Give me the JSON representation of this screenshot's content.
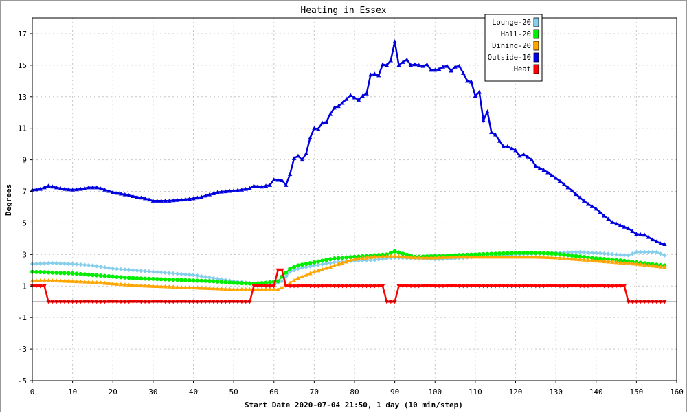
{
  "chart_data": {
    "type": "line",
    "title": "Heating in Essex",
    "xlabel": "Start Date 2020-07-04 21:50, 1 day (10 min/step)",
    "ylabel": "Degrees",
    "xlim": [
      0,
      160
    ],
    "ylim": [
      -5,
      18
    ],
    "x_ticks": [
      0,
      10,
      20,
      30,
      40,
      50,
      60,
      70,
      80,
      90,
      100,
      110,
      120,
      130,
      140,
      150,
      160
    ],
    "y_ticks": [
      -5,
      -3,
      -1,
      1,
      3,
      5,
      7,
      9,
      11,
      13,
      15,
      17
    ],
    "grid": true,
    "zero_line": true,
    "legend_position": "top-right",
    "series": [
      {
        "name": "Lounge-20",
        "color": "#87ceeb",
        "marker": "diamond",
        "points": [
          [
            0,
            2.4
          ],
          [
            5,
            2.45
          ],
          [
            10,
            2.4
          ],
          [
            15,
            2.3
          ],
          [
            20,
            2.1
          ],
          [
            25,
            2.0
          ],
          [
            30,
            1.9
          ],
          [
            35,
            1.8
          ],
          [
            40,
            1.7
          ],
          [
            45,
            1.5
          ],
          [
            50,
            1.3
          ],
          [
            55,
            1.15
          ],
          [
            60,
            1.1
          ],
          [
            62,
            1.3
          ],
          [
            64,
            1.9
          ],
          [
            66,
            2.1
          ],
          [
            70,
            2.3
          ],
          [
            75,
            2.5
          ],
          [
            80,
            2.6
          ],
          [
            85,
            2.65
          ],
          [
            88,
            2.75
          ],
          [
            90,
            2.8
          ],
          [
            95,
            2.75
          ],
          [
            100,
            2.7
          ],
          [
            105,
            2.75
          ],
          [
            110,
            2.85
          ],
          [
            115,
            2.9
          ],
          [
            120,
            3.0
          ],
          [
            125,
            3.05
          ],
          [
            130,
            3.1
          ],
          [
            135,
            3.15
          ],
          [
            140,
            3.1
          ],
          [
            145,
            3.0
          ],
          [
            148,
            2.95
          ],
          [
            150,
            3.15
          ],
          [
            155,
            3.15
          ],
          [
            157,
            2.95
          ]
        ]
      },
      {
        "name": "Hall-20",
        "color": "#00ee00",
        "marker": "circle",
        "points": [
          [
            0,
            1.9
          ],
          [
            5,
            1.85
          ],
          [
            10,
            1.8
          ],
          [
            15,
            1.7
          ],
          [
            20,
            1.6
          ],
          [
            25,
            1.5
          ],
          [
            30,
            1.45
          ],
          [
            35,
            1.4
          ],
          [
            40,
            1.35
          ],
          [
            45,
            1.3
          ],
          [
            50,
            1.2
          ],
          [
            55,
            1.15
          ],
          [
            58,
            1.2
          ],
          [
            61,
            1.3
          ],
          [
            62,
            1.6
          ],
          [
            64,
            2.1
          ],
          [
            66,
            2.3
          ],
          [
            70,
            2.5
          ],
          [
            75,
            2.75
          ],
          [
            80,
            2.85
          ],
          [
            85,
            2.95
          ],
          [
            88,
            3.0
          ],
          [
            90,
            3.2
          ],
          [
            92,
            3.05
          ],
          [
            95,
            2.85
          ],
          [
            100,
            2.9
          ],
          [
            105,
            2.95
          ],
          [
            110,
            3.0
          ],
          [
            115,
            3.05
          ],
          [
            120,
            3.1
          ],
          [
            125,
            3.1
          ],
          [
            130,
            3.05
          ],
          [
            135,
            2.9
          ],
          [
            140,
            2.75
          ],
          [
            145,
            2.65
          ],
          [
            150,
            2.5
          ],
          [
            155,
            2.35
          ],
          [
            157,
            2.3
          ]
        ]
      },
      {
        "name": "Dining-20",
        "color": "#ffa500",
        "marker": "triangle-up",
        "points": [
          [
            0,
            1.35
          ],
          [
            5,
            1.35
          ],
          [
            10,
            1.3
          ],
          [
            15,
            1.25
          ],
          [
            20,
            1.15
          ],
          [
            25,
            1.05
          ],
          [
            30,
            1.0
          ],
          [
            35,
            0.95
          ],
          [
            40,
            0.9
          ],
          [
            45,
            0.85
          ],
          [
            50,
            0.8
          ],
          [
            55,
            0.8
          ],
          [
            61,
            0.8
          ],
          [
            62,
            0.9
          ],
          [
            64,
            1.2
          ],
          [
            66,
            1.5
          ],
          [
            70,
            1.9
          ],
          [
            75,
            2.3
          ],
          [
            80,
            2.7
          ],
          [
            85,
            2.85
          ],
          [
            90,
            2.9
          ],
          [
            95,
            2.8
          ],
          [
            100,
            2.8
          ],
          [
            105,
            2.85
          ],
          [
            110,
            2.85
          ],
          [
            115,
            2.85
          ],
          [
            120,
            2.85
          ],
          [
            125,
            2.85
          ],
          [
            130,
            2.8
          ],
          [
            135,
            2.7
          ],
          [
            140,
            2.6
          ],
          [
            145,
            2.5
          ],
          [
            150,
            2.4
          ],
          [
            155,
            2.25
          ],
          [
            157,
            2.2
          ]
        ]
      },
      {
        "name": "Outside-10",
        "color": "#0000dd",
        "marker": "triangle-up",
        "points": [
          [
            0,
            7.1
          ],
          [
            2,
            7.15
          ],
          [
            4,
            7.35
          ],
          [
            6,
            7.25
          ],
          [
            8,
            7.15
          ],
          [
            10,
            7.1
          ],
          [
            12,
            7.15
          ],
          [
            14,
            7.25
          ],
          [
            16,
            7.25
          ],
          [
            18,
            7.1
          ],
          [
            20,
            6.95
          ],
          [
            22,
            6.85
          ],
          [
            24,
            6.75
          ],
          [
            26,
            6.65
          ],
          [
            28,
            6.55
          ],
          [
            30,
            6.4
          ],
          [
            32,
            6.4
          ],
          [
            34,
            6.4
          ],
          [
            36,
            6.45
          ],
          [
            38,
            6.5
          ],
          [
            40,
            6.55
          ],
          [
            42,
            6.65
          ],
          [
            44,
            6.8
          ],
          [
            46,
            6.95
          ],
          [
            48,
            7.0
          ],
          [
            50,
            7.05
          ],
          [
            52,
            7.1
          ],
          [
            54,
            7.2
          ],
          [
            55,
            7.35
          ],
          [
            57,
            7.3
          ],
          [
            59,
            7.4
          ],
          [
            60,
            7.75
          ],
          [
            62,
            7.7
          ],
          [
            63,
            7.4
          ],
          [
            64,
            8.1
          ],
          [
            65,
            9.1
          ],
          [
            66,
            9.25
          ],
          [
            67,
            9.0
          ],
          [
            68,
            9.4
          ],
          [
            69,
            10.4
          ],
          [
            70,
            11.0
          ],
          [
            71,
            10.95
          ],
          [
            72,
            11.35
          ],
          [
            73,
            11.4
          ],
          [
            74,
            11.9
          ],
          [
            75,
            12.3
          ],
          [
            76,
            12.4
          ],
          [
            77,
            12.6
          ],
          [
            78,
            12.85
          ],
          [
            79,
            13.1
          ],
          [
            80,
            12.95
          ],
          [
            81,
            12.8
          ],
          [
            82,
            13.05
          ],
          [
            83,
            13.2
          ],
          [
            84,
            14.4
          ],
          [
            85,
            14.45
          ],
          [
            86,
            14.35
          ],
          [
            87,
            15.05
          ],
          [
            88,
            15.0
          ],
          [
            89,
            15.3
          ],
          [
            90,
            16.5
          ],
          [
            91,
            15.0
          ],
          [
            92,
            15.2
          ],
          [
            93,
            15.35
          ],
          [
            94,
            15.0
          ],
          [
            95,
            15.05
          ],
          [
            96,
            15.0
          ],
          [
            97,
            14.95
          ],
          [
            98,
            15.05
          ],
          [
            99,
            14.7
          ],
          [
            100,
            14.7
          ],
          [
            101,
            14.75
          ],
          [
            102,
            14.9
          ],
          [
            103,
            14.95
          ],
          [
            104,
            14.65
          ],
          [
            105,
            14.9
          ],
          [
            106,
            14.95
          ],
          [
            107,
            14.5
          ],
          [
            108,
            14.0
          ],
          [
            109,
            13.95
          ],
          [
            110,
            13.05
          ],
          [
            111,
            13.3
          ],
          [
            112,
            11.5
          ],
          [
            113,
            12.05
          ],
          [
            114,
            10.75
          ],
          [
            115,
            10.6
          ],
          [
            116,
            10.2
          ],
          [
            117,
            9.85
          ],
          [
            118,
            9.85
          ],
          [
            119,
            9.7
          ],
          [
            120,
            9.6
          ],
          [
            121,
            9.25
          ],
          [
            122,
            9.35
          ],
          [
            123,
            9.2
          ],
          [
            124,
            9.0
          ],
          [
            125,
            8.6
          ],
          [
            126,
            8.45
          ],
          [
            127,
            8.35
          ],
          [
            128,
            8.2
          ],
          [
            130,
            7.85
          ],
          [
            132,
            7.45
          ],
          [
            134,
            7.05
          ],
          [
            136,
            6.6
          ],
          [
            138,
            6.2
          ],
          [
            140,
            5.9
          ],
          [
            142,
            5.45
          ],
          [
            144,
            5.05
          ],
          [
            146,
            4.85
          ],
          [
            148,
            4.65
          ],
          [
            150,
            4.3
          ],
          [
            152,
            4.25
          ],
          [
            154,
            3.95
          ],
          [
            156,
            3.7
          ],
          [
            157,
            3.65
          ]
        ]
      },
      {
        "name": "Heat",
        "color": "#ff0000",
        "marker": "triangle-down",
        "points": [
          [
            0,
            1.0
          ],
          [
            3,
            1.0
          ],
          [
            4,
            0.0
          ],
          [
            54,
            0.0
          ],
          [
            55,
            1.0
          ],
          [
            60,
            1.0
          ],
          [
            61,
            2.0
          ],
          [
            62,
            2.0
          ],
          [
            63,
            1.0
          ],
          [
            87,
            1.0
          ],
          [
            88,
            0.0
          ],
          [
            90,
            0.0
          ],
          [
            91,
            1.0
          ],
          [
            147,
            1.0
          ],
          [
            148,
            0.0
          ],
          [
            157,
            0.0
          ]
        ]
      }
    ]
  }
}
